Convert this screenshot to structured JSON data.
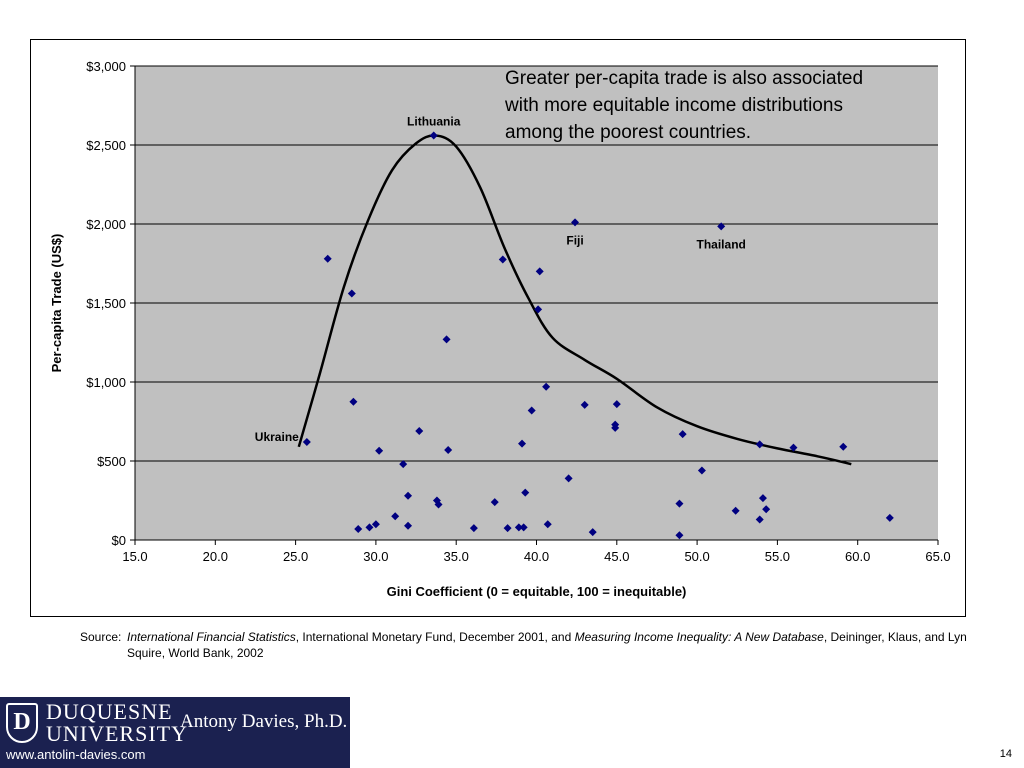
{
  "chart_data": {
    "type": "scatter",
    "xlabel": "Gini Coefficient (0 = equitable, 100 = inequitable)",
    "ylabel": "Per-capita Trade (US$)",
    "xlim": [
      15,
      65
    ],
    "ylim": [
      0,
      3000
    ],
    "x_ticks": [
      15,
      20,
      25,
      30,
      35,
      40,
      45,
      50,
      55,
      60,
      65
    ],
    "x_tick_labels": [
      "15.0",
      "20.0",
      "25.0",
      "30.0",
      "35.0",
      "40.0",
      "45.0",
      "50.0",
      "55.0",
      "60.0",
      "65.0"
    ],
    "y_ticks": [
      0,
      500,
      1000,
      1500,
      2000,
      2500,
      3000
    ],
    "y_tick_labels": [
      "$0",
      "$500",
      "$1,000",
      "$1,500",
      "$2,000",
      "$2,500",
      "$3,000"
    ],
    "grid": "horizontal",
    "plot_background": "#c0c0c0",
    "marker_color": "#000080",
    "curve_color": "#000000",
    "points": [
      {
        "x": 25.7,
        "y": 620
      },
      {
        "x": 27.0,
        "y": 1780
      },
      {
        "x": 28.5,
        "y": 1560
      },
      {
        "x": 28.6,
        "y": 875
      },
      {
        "x": 28.9,
        "y": 70
      },
      {
        "x": 29.6,
        "y": 80
      },
      {
        "x": 30.0,
        "y": 100
      },
      {
        "x": 30.2,
        "y": 565
      },
      {
        "x": 31.2,
        "y": 150
      },
      {
        "x": 31.7,
        "y": 480
      },
      {
        "x": 32.0,
        "y": 280
      },
      {
        "x": 32.0,
        "y": 90
      },
      {
        "x": 32.7,
        "y": 690
      },
      {
        "x": 33.6,
        "y": 2560
      },
      {
        "x": 33.8,
        "y": 250
      },
      {
        "x": 33.9,
        "y": 225
      },
      {
        "x": 34.4,
        "y": 1270
      },
      {
        "x": 34.5,
        "y": 570
      },
      {
        "x": 36.1,
        "y": 75
      },
      {
        "x": 37.4,
        "y": 240
      },
      {
        "x": 37.9,
        "y": 1775
      },
      {
        "x": 38.2,
        "y": 75
      },
      {
        "x": 38.9,
        "y": 80
      },
      {
        "x": 39.1,
        "y": 610
      },
      {
        "x": 39.2,
        "y": 80
      },
      {
        "x": 39.3,
        "y": 300
      },
      {
        "x": 39.7,
        "y": 820
      },
      {
        "x": 40.1,
        "y": 1460
      },
      {
        "x": 40.2,
        "y": 1700
      },
      {
        "x": 40.6,
        "y": 970
      },
      {
        "x": 40.7,
        "y": 100
      },
      {
        "x": 42.0,
        "y": 390
      },
      {
        "x": 42.4,
        "y": 2010
      },
      {
        "x": 43.0,
        "y": 855
      },
      {
        "x": 43.5,
        "y": 50
      },
      {
        "x": 44.9,
        "y": 730
      },
      {
        "x": 44.9,
        "y": 710
      },
      {
        "x": 45.0,
        "y": 860
      },
      {
        "x": 48.9,
        "y": 230
      },
      {
        "x": 48.9,
        "y": 30
      },
      {
        "x": 49.1,
        "y": 670
      },
      {
        "x": 50.3,
        "y": 440
      },
      {
        "x": 51.5,
        "y": 1985
      },
      {
        "x": 52.4,
        "y": 185
      },
      {
        "x": 53.9,
        "y": 605
      },
      {
        "x": 53.9,
        "y": 130
      },
      {
        "x": 54.1,
        "y": 265
      },
      {
        "x": 54.3,
        "y": 195
      },
      {
        "x": 56.0,
        "y": 585
      },
      {
        "x": 59.1,
        "y": 590
      },
      {
        "x": 62.0,
        "y": 140
      }
    ],
    "trend_curve": [
      [
        25.2,
        590
      ],
      [
        26.5,
        1050
      ],
      [
        28.0,
        1600
      ],
      [
        29.5,
        2020
      ],
      [
        31.0,
        2340
      ],
      [
        32.5,
        2510
      ],
      [
        33.7,
        2560
      ],
      [
        35.0,
        2490
      ],
      [
        36.5,
        2230
      ],
      [
        38.0,
        1850
      ],
      [
        39.5,
        1530
      ],
      [
        41.0,
        1280
      ],
      [
        43.0,
        1140
      ],
      [
        45.0,
        1020
      ],
      [
        47.5,
        840
      ],
      [
        50.0,
        720
      ],
      [
        52.5,
        640
      ],
      [
        55.0,
        580
      ],
      [
        57.5,
        530
      ],
      [
        59.6,
        480
      ]
    ],
    "point_labels": [
      {
        "text": "Lithuania",
        "x": 33.6,
        "y": 2560,
        "pos": "above"
      },
      {
        "text": "Fiji",
        "x": 42.4,
        "y": 2010,
        "pos": "below"
      },
      {
        "text": "Thailand",
        "x": 51.5,
        "y": 1985,
        "pos": "below"
      },
      {
        "text": "Ukraine",
        "x": 25.7,
        "y": 620,
        "pos": "left"
      }
    ],
    "annotation": [
      "Greater per-capita trade is also associated",
      "with more equitable income distributions",
      "among the poorest countries."
    ]
  },
  "source": {
    "label": "Source:",
    "title1": "International Financial Statistics",
    "text1": ", International Monetary Fund, December 2001, and ",
    "title2": "Measuring Income Inequality: A New Database",
    "text2": ", Deininger, Klaus, and Lyn Squire, World Bank, 2002"
  },
  "footer": {
    "logo_letter": "D",
    "university_line1": "DUQUESNE",
    "university_line2": "UNIVERSITY",
    "author": "Antony Davies, Ph.D.",
    "url": "www.antolin-davies.com",
    "page_number": "14"
  }
}
